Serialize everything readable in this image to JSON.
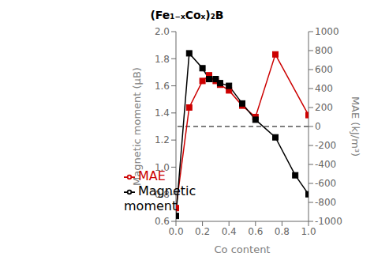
{
  "chart_data": {
    "type": "line",
    "title": "(Fe₁₋ₓCoₓ)₂B",
    "xlabel": "Co content",
    "ylabel": "Magnetic moment (μB)",
    "y2label": "MAE (kJ/m³)",
    "xlim": [
      0.0,
      1.0
    ],
    "xticks": [
      {
        "value": 0.0,
        "label": "0.0"
      },
      0.2,
      0.4,
      0.6,
      0.8,
      {
        "value": 1.0,
        "label": "1.0"
      }
    ],
    "ylim": [
      0.6,
      2.0
    ],
    "yticks": [
      0.6,
      0.8,
      {
        "value": 1.0,
        "label": "1.0"
      },
      1.2,
      1.4,
      1.6,
      1.8,
      {
        "value": 2.0,
        "label": "2.0"
      }
    ],
    "y2lim": [
      -1000,
      1000
    ],
    "y2ticks": [
      -1000,
      -800,
      -600,
      -400,
      -200,
      0,
      200,
      400,
      600,
      800,
      1000
    ],
    "grid": false,
    "legend": "lower center",
    "series": [
      {
        "name": "MAE",
        "color": "#cc0000",
        "axis": "y2",
        "marker": "square",
        "line_style": "solid",
        "x": [
          0.0,
          0.1,
          0.2,
          0.25,
          0.3,
          0.333,
          0.4,
          0.5,
          0.6,
          0.75,
          1.0
        ],
        "values": [
          -860,
          200,
          480,
          540,
          480,
          440,
          380,
          220,
          100,
          760,
          120
        ]
      },
      {
        "name": "Magnetic moment",
        "color": "#000000",
        "axis": "y",
        "marker": "square",
        "line_style": "solid",
        "x": [
          0.0,
          0.1,
          0.2,
          0.25,
          0.3,
          0.333,
          0.4,
          0.5,
          0.6,
          0.75,
          0.9,
          1.0
        ],
        "values": [
          0.64,
          1.84,
          1.73,
          1.65,
          1.65,
          1.62,
          1.6,
          1.47,
          1.35,
          1.22,
          0.94,
          0.8
        ]
      }
    ],
    "hlines": [
      {
        "value": 0,
        "axis": "y2",
        "color": "#000000",
        "line_style": "dashed"
      }
    ]
  }
}
